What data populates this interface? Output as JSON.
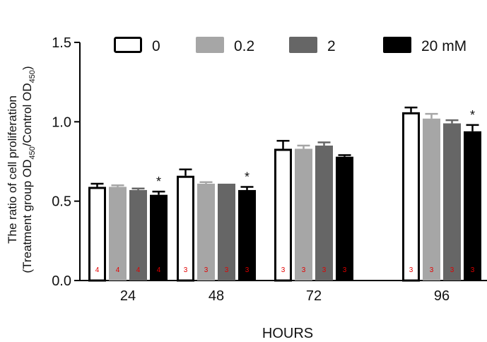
{
  "chart_data": {
    "type": "bar",
    "categories": [
      "24",
      "48",
      "72",
      "96"
    ],
    "xlabel": "HOURS",
    "ylabel_line1": "The ratio of cell proliferation",
    "ylabel_line2_parts": [
      "(Treatment group OD",
      "450",
      "/Control OD",
      "450",
      ")"
    ],
    "ylim": [
      0,
      1.5
    ],
    "yticks": [
      "0.0",
      "0.5",
      "1.0",
      "1.5"
    ],
    "legend_position": "top",
    "series": [
      {
        "name": "0",
        "fill": "#ffffff",
        "stroke": "#000000",
        "values": [
          0.59,
          0.66,
          0.83,
          1.06
        ],
        "errors": [
          0.02,
          0.04,
          0.05,
          0.03
        ],
        "n": [
          "4",
          "3",
          "3",
          "3"
        ],
        "significance": [
          "",
          "",
          "",
          ""
        ]
      },
      {
        "name": "0.2",
        "fill": "#a6a6a6",
        "stroke": "#a6a6a6",
        "values": [
          0.59,
          0.61,
          0.83,
          1.02
        ],
        "errors": [
          0.01,
          0.01,
          0.02,
          0.03
        ],
        "n": [
          "4",
          "3",
          "3",
          "3"
        ],
        "significance": [
          "",
          "",
          "",
          ""
        ]
      },
      {
        "name": "2",
        "fill": "#666666",
        "stroke": "#666666",
        "values": [
          0.57,
          0.61,
          0.85,
          0.99
        ],
        "errors": [
          0.01,
          0.0,
          0.02,
          0.02
        ],
        "n": [
          "4",
          "3",
          "3",
          "3"
        ],
        "significance": [
          "",
          "",
          "",
          ""
        ]
      },
      {
        "name": "20 mM",
        "fill": "#000000",
        "stroke": "#000000",
        "values": [
          0.54,
          0.57,
          0.78,
          0.94
        ],
        "errors": [
          0.02,
          0.02,
          0.01,
          0.04
        ],
        "n": [
          "4",
          "3",
          "3",
          "3"
        ],
        "significance": [
          "*",
          "*",
          "",
          "*"
        ]
      }
    ]
  }
}
